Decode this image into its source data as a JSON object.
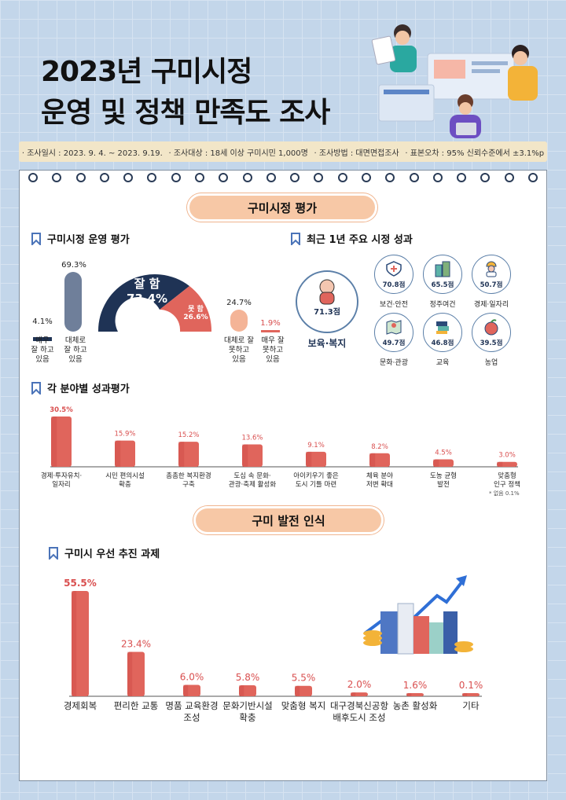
{
  "header": {
    "title_line1": "2023년 구미시정",
    "title_line2": "운영 및 정책 만족도 조사"
  },
  "survey_info": {
    "period": "조사일시 : 2023. 9. 4. ~ 2023. 9.19.",
    "target": "조사대상 : 18세 이상 구미시민 1,000명",
    "method": "조사방법 : 대면면접조사",
    "error": "표본오차 : 95% 신뢰수준에서 ±3.1%p"
  },
  "sections": {
    "eval_pill": "구미시정 평가",
    "development_pill": "구미 발전 인식"
  },
  "operation_eval": {
    "title": "구미시정 운영 평가",
    "good_label": "잘 함",
    "good_value": "73.4%",
    "bad_label": "못 함",
    "bad_value": "26.6%",
    "items": [
      {
        "label": "매우\n잘 하고\n있음",
        "value": 4.1,
        "text": "4.1%"
      },
      {
        "label": "대체로\n잘 하고\n있음",
        "value": 69.3,
        "text": "69.3%"
      },
      {
        "label": "대체로 잘\n못하고\n있음",
        "value": 24.7,
        "text": "24.7%"
      },
      {
        "label": "매우 잘\n못하고\n있음",
        "value": 1.9,
        "text": "1.9%"
      }
    ]
  },
  "achievements": {
    "title": "최근 1년 주요 시정 성과",
    "main": {
      "value": "71.3점",
      "label": "보육·복지"
    },
    "items": [
      {
        "value": "70.8점",
        "label": "보건·안전",
        "icon": "health-safety-icon"
      },
      {
        "value": "65.5점",
        "label": "정주여건",
        "icon": "buildings-icon"
      },
      {
        "value": "50.7점",
        "label": "경제·일자리",
        "icon": "worker-icon"
      },
      {
        "value": "49.7점",
        "label": "문화·관광",
        "icon": "map-pin-icon"
      },
      {
        "value": "46.8점",
        "label": "교육",
        "icon": "books-icon"
      },
      {
        "value": "39.5점",
        "label": "농업",
        "icon": "fruit-icon"
      }
    ]
  },
  "chart_data": [
    {
      "type": "bar",
      "title": "각 분야별 성과평가",
      "categories": [
        "경제·투자유치·\n일자리",
        "시민 편의시설\n확충",
        "촘촘한 복지환경\n구축",
        "도심 속 문화·\n관광·축제 활성화",
        "아이키우기 좋은\n도시 기틀 마련",
        "체육 분야\n저변 확대",
        "도농 균형\n발전",
        "맞춤형\n인구 정책"
      ],
      "values": [
        30.5,
        15.9,
        15.2,
        13.6,
        9.1,
        8.2,
        4.5,
        3.0
      ],
      "labels": [
        "30.5%",
        "15.9%",
        "15.2%",
        "13.6%",
        "9.1%",
        "8.2%",
        "4.5%",
        "3.0%"
      ],
      "footnote": "* 없음 0.1%"
    },
    {
      "type": "bar",
      "title": "구미시 우선 추진 과제",
      "categories": [
        "경제회복",
        "편리한 교통",
        "명품 교육환경\n조성",
        "문화기반시설\n확충",
        "맞춤형 복지",
        "대구경북신공항\n배후도시 조성",
        "농촌 활성화",
        "기타"
      ],
      "values": [
        55.5,
        23.4,
        6.0,
        5.8,
        5.5,
        2.0,
        1.6,
        0.1
      ],
      "labels": [
        "55.5%",
        "23.4%",
        "6.0%",
        "5.8%",
        "5.5%",
        "2.0%",
        "1.6%",
        "0.1%"
      ]
    }
  ],
  "colors": {
    "navy": "#1f3355",
    "slate": "#6f7f9a",
    "coral": "#e0655c",
    "peach": "#f4b497",
    "pill": "#f7c8a6",
    "background": "#c3d6ea"
  }
}
